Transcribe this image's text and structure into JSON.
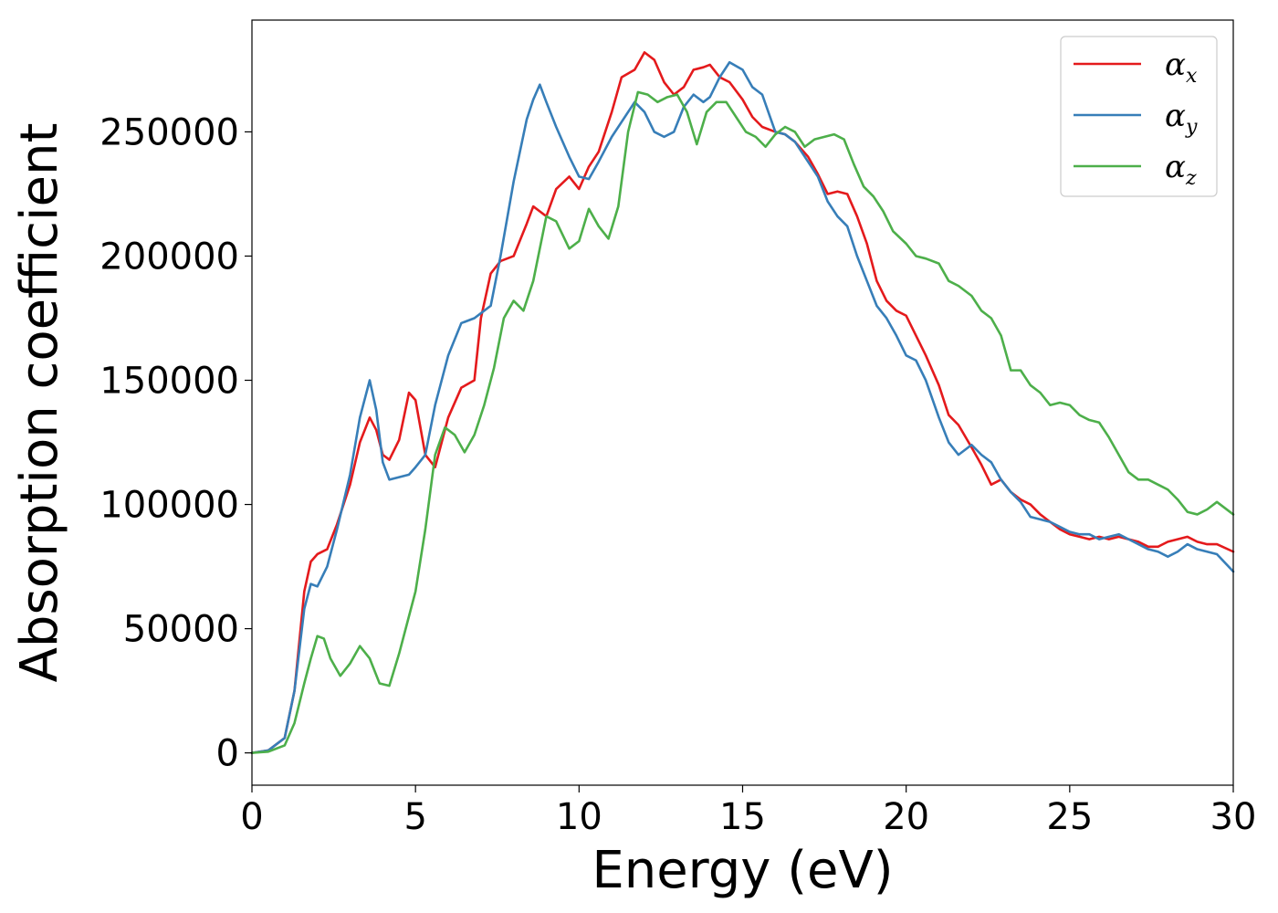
{
  "chart_data": {
    "type": "line",
    "title": "",
    "xlabel": "Energy (eV)",
    "ylabel": "Absorption coefficient",
    "xlim": [
      0,
      30
    ],
    "ylim": [
      -13000,
      295000
    ],
    "xticks": [
      0,
      5,
      10,
      15,
      20,
      25,
      30
    ],
    "yticks": [
      0,
      50000,
      100000,
      150000,
      200000,
      250000
    ],
    "grid": false,
    "legend_position": "top-right",
    "series": [
      {
        "name": "α",
        "sub": "x",
        "color": "#e41a1c",
        "x": [
          0,
          0.5,
          1,
          1.3,
          1.6,
          1.8,
          2.0,
          2.3,
          2.6,
          3.0,
          3.3,
          3.6,
          3.8,
          4.0,
          4.2,
          4.5,
          4.8,
          5.0,
          5.3,
          5.6,
          6.0,
          6.4,
          6.8,
          7.0,
          7.3,
          7.6,
          8.0,
          8.4,
          8.6,
          8.8,
          9.0,
          9.3,
          9.7,
          10.0,
          10.3,
          10.6,
          11.0,
          11.3,
          11.7,
          12.0,
          12.3,
          12.6,
          12.9,
          13.2,
          13.5,
          13.8,
          14.0,
          14.3,
          14.6,
          15.0,
          15.3,
          15.6,
          16.0,
          16.3,
          16.6,
          17.0,
          17.3,
          17.6,
          17.9,
          18.2,
          18.5,
          18.8,
          19.1,
          19.4,
          19.7,
          20.0,
          20.3,
          20.6,
          21.0,
          21.3,
          21.6,
          22.0,
          22.3,
          22.6,
          22.9,
          23.2,
          23.5,
          23.8,
          24.1,
          24.4,
          24.7,
          25.0,
          25.3,
          25.6,
          25.9,
          26.2,
          26.5,
          26.8,
          27.1,
          27.4,
          27.7,
          28.0,
          28.3,
          28.6,
          28.9,
          29.2,
          29.5,
          30
        ],
        "y": [
          0,
          1000,
          6000,
          25000,
          65000,
          77000,
          80000,
          82000,
          92000,
          108000,
          125000,
          135000,
          130000,
          120000,
          118000,
          126000,
          145000,
          142000,
          120000,
          115000,
          135000,
          147000,
          150000,
          175000,
          193000,
          198000,
          200000,
          213000,
          220000,
          218000,
          216000,
          227000,
          232000,
          227000,
          236000,
          242000,
          258000,
          272000,
          275000,
          282000,
          279000,
          270000,
          265000,
          268000,
          275000,
          276000,
          277000,
          272000,
          270000,
          263000,
          256000,
          252000,
          250000,
          249000,
          246000,
          240000,
          233000,
          225000,
          226000,
          225000,
          216000,
          205000,
          190000,
          182000,
          178000,
          176000,
          168000,
          160000,
          148000,
          136000,
          132000,
          123000,
          116000,
          108000,
          110000,
          105000,
          102000,
          100000,
          96000,
          93000,
          90000,
          88000,
          87000,
          86000,
          87000,
          86000,
          87000,
          86000,
          85000,
          83000,
          83000,
          85000,
          86000,
          87000,
          85000,
          84000,
          84000,
          81000
        ]
      },
      {
        "name": "α",
        "sub": "y",
        "color": "#377eb8",
        "x": [
          0,
          0.5,
          1,
          1.3,
          1.6,
          1.8,
          2.0,
          2.3,
          2.6,
          3.0,
          3.3,
          3.6,
          3.8,
          4.0,
          4.2,
          4.5,
          4.8,
          5.0,
          5.3,
          5.6,
          6.0,
          6.4,
          6.8,
          7.0,
          7.3,
          7.6,
          8.0,
          8.4,
          8.6,
          8.8,
          9.0,
          9.3,
          9.7,
          10.0,
          10.3,
          10.6,
          11.0,
          11.3,
          11.7,
          12.0,
          12.3,
          12.6,
          12.9,
          13.2,
          13.5,
          13.8,
          14.0,
          14.3,
          14.6,
          15.0,
          15.3,
          15.6,
          16.0,
          16.3,
          16.6,
          17.0,
          17.3,
          17.6,
          17.9,
          18.2,
          18.5,
          18.8,
          19.1,
          19.4,
          19.7,
          20.0,
          20.3,
          20.6,
          21.0,
          21.3,
          21.6,
          22.0,
          22.3,
          22.6,
          22.9,
          23.2,
          23.5,
          23.8,
          24.1,
          24.4,
          24.7,
          25.0,
          25.3,
          25.6,
          25.9,
          26.2,
          26.5,
          26.8,
          27.1,
          27.4,
          27.7,
          28.0,
          28.3,
          28.6,
          28.9,
          29.2,
          29.5,
          30
        ],
        "y": [
          0,
          1000,
          6000,
          25000,
          58000,
          68000,
          67000,
          75000,
          90000,
          112000,
          135000,
          150000,
          138000,
          117000,
          110000,
          111000,
          112000,
          115000,
          120000,
          140000,
          160000,
          173000,
          175000,
          177000,
          180000,
          200000,
          230000,
          255000,
          263000,
          269000,
          262000,
          252000,
          240000,
          232000,
          231000,
          238000,
          248000,
          254000,
          262000,
          258000,
          250000,
          248000,
          250000,
          260000,
          265000,
          262000,
          264000,
          272000,
          278000,
          275000,
          268000,
          265000,
          250000,
          249000,
          246000,
          238000,
          232000,
          222000,
          216000,
          212000,
          200000,
          190000,
          180000,
          175000,
          168000,
          160000,
          158000,
          150000,
          135000,
          125000,
          120000,
          124000,
          120000,
          117000,
          110000,
          105000,
          101000,
          95000,
          94000,
          93000,
          91000,
          89000,
          88000,
          88000,
          86000,
          87000,
          88000,
          86000,
          84000,
          82000,
          81000,
          79000,
          81000,
          84000,
          82000,
          81000,
          80000,
          73000
        ]
      },
      {
        "name": "α",
        "sub": "z",
        "color": "#4daf4a",
        "x": [
          0,
          0.5,
          1,
          1.3,
          1.6,
          1.8,
          2.0,
          2.2,
          2.4,
          2.7,
          3.0,
          3.3,
          3.6,
          3.9,
          4.2,
          4.5,
          4.8,
          5.0,
          5.3,
          5.6,
          5.9,
          6.2,
          6.5,
          6.8,
          7.1,
          7.4,
          7.7,
          8.0,
          8.3,
          8.6,
          9.0,
          9.3,
          9.7,
          10.0,
          10.3,
          10.6,
          10.9,
          11.2,
          11.5,
          11.8,
          12.1,
          12.4,
          12.7,
          13.0,
          13.3,
          13.6,
          13.9,
          14.2,
          14.5,
          14.8,
          15.1,
          15.4,
          15.7,
          16.0,
          16.3,
          16.6,
          16.9,
          17.2,
          17.5,
          17.8,
          18.1,
          18.4,
          18.7,
          19.0,
          19.3,
          19.6,
          20.0,
          20.3,
          20.6,
          21.0,
          21.3,
          21.6,
          22.0,
          22.3,
          22.6,
          22.9,
          23.2,
          23.5,
          23.8,
          24.1,
          24.4,
          24.7,
          25.0,
          25.3,
          25.6,
          25.9,
          26.2,
          26.5,
          26.8,
          27.1,
          27.4,
          27.7,
          28.0,
          28.3,
          28.6,
          28.9,
          29.2,
          29.5,
          30
        ],
        "y": [
          0,
          500,
          3000,
          12000,
          28000,
          38000,
          47000,
          46000,
          38000,
          31000,
          36000,
          43000,
          38000,
          28000,
          27000,
          40000,
          55000,
          65000,
          90000,
          120000,
          131000,
          128000,
          121000,
          128000,
          140000,
          155000,
          175000,
          182000,
          178000,
          190000,
          216000,
          214000,
          203000,
          206000,
          219000,
          212000,
          207000,
          220000,
          250000,
          266000,
          265000,
          262000,
          264000,
          265000,
          258000,
          245000,
          258000,
          262000,
          262000,
          256000,
          250000,
          248000,
          244000,
          249000,
          252000,
          250000,
          244000,
          247000,
          248000,
          249000,
          247000,
          237000,
          228000,
          224000,
          218000,
          210000,
          205000,
          200000,
          199000,
          197000,
          190000,
          188000,
          184000,
          178000,
          175000,
          168000,
          154000,
          154000,
          148000,
          145000,
          140000,
          141000,
          140000,
          136000,
          134000,
          133000,
          127000,
          120000,
          113000,
          110000,
          110000,
          108000,
          106000,
          102000,
          97000,
          96000,
          98000,
          101000,
          96000
        ]
      }
    ]
  }
}
